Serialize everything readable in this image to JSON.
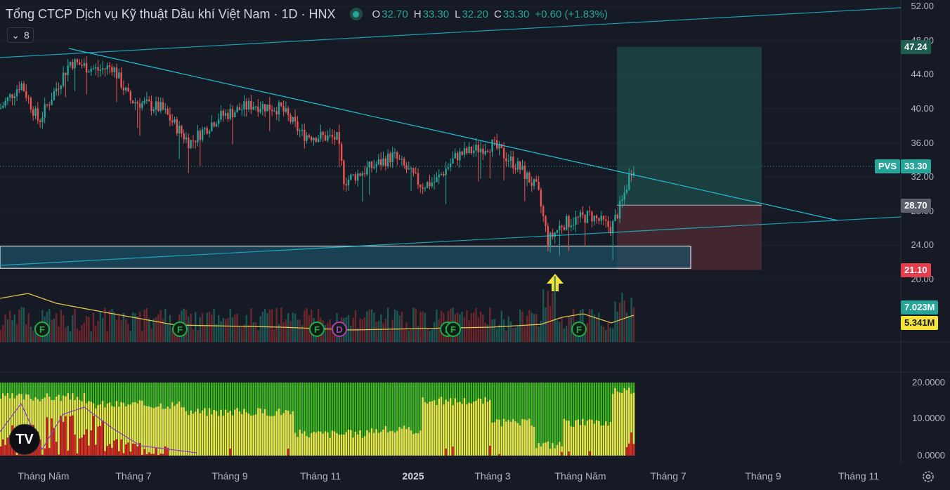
{
  "header": {
    "title": "Tổng CTCP Dịch vụ Kỹ thuật Dầu khí Việt Nam · 1D · HNX",
    "ohlc": [
      {
        "k": "O",
        "v": "32.70"
      },
      {
        "k": "H",
        "v": "33.30"
      },
      {
        "k": "L",
        "v": "32.20"
      },
      {
        "k": "C",
        "v": "33.30"
      }
    ],
    "change": "+0.60 (+1.83%)",
    "indicators_count": "8"
  },
  "price_axis": {
    "ticks": [
      "52.00",
      "48.00",
      "44.00",
      "40.00",
      "36.00",
      "32.00",
      "28.00",
      "24.00",
      "20.00"
    ],
    "tags": {
      "target": "47.24",
      "last_symbol": "PVS",
      "last": "33.30",
      "entry": "28.70",
      "stop": "21.10",
      "volume": "7.023M",
      "volume_ma": "5.341M"
    }
  },
  "lower_axis": {
    "ticks": [
      "20.0000",
      "10.0000",
      "0.0000"
    ]
  },
  "time_axis": [
    "Tháng Năm",
    "Tháng 7",
    "Tháng 9",
    "Tháng 11",
    "2025",
    "Tháng 3",
    "Tháng Năm",
    "Tháng 7",
    "Tháng 9",
    "Tháng 11"
  ],
  "events": [
    {
      "label": "F"
    },
    {
      "label": "F"
    },
    {
      "label": "F"
    },
    {
      "label": "D"
    },
    {
      "label": "F"
    },
    {
      "label": "F"
    },
    {
      "label": "F"
    }
  ],
  "colors": {
    "up": "#26a69a",
    "down": "#ef5350",
    "background": "#161a25",
    "trendline": "#22c1d8",
    "target_zone": "#1e4f4a",
    "stop_zone": "#4a2a33",
    "volume_ma": "#e8c44a",
    "osc_green": "#3cb521",
    "osc_yellow": "#e6e64a",
    "osc_red": "#d62020"
  },
  "chart_data": {
    "type": "candlestick",
    "symbol": "PVS",
    "ylim": [
      18,
      53
    ],
    "key_points": [
      {
        "x": "Tháng Năm",
        "y": 42.5
      },
      {
        "x": "Tháng 7",
        "y": 44.0
      },
      {
        "x": "Tháng 9",
        "y": 39.5
      },
      {
        "x": "Tháng 11",
        "y": 32.5
      },
      {
        "x": "2025",
        "y": 34.0
      },
      {
        "x": "Tháng 3",
        "y": 34.5
      },
      {
        "x": "Tháng Năm",
        "y": 24.0
      },
      {
        "x": "last",
        "y": 33.3
      }
    ],
    "long_position": {
      "entry": 28.7,
      "target": 47.24,
      "stop": 21.1
    },
    "support_zone": [
      21.3,
      23.9
    ],
    "last_close": 33.3,
    "volume_last": "7.023M",
    "volume_ma_last": "5.341M",
    "oscillator_range": [
      0,
      20
    ]
  }
}
